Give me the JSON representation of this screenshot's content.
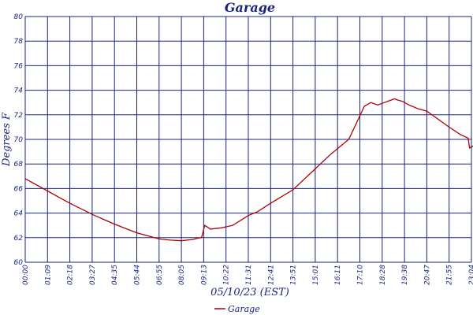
{
  "chart_data": {
    "type": "line",
    "title": "Garage",
    "xlabel": "05/10/23 (EST)",
    "ylabel": "Degrees F",
    "ylim": [
      60,
      80
    ],
    "y_ticks": [
      "60",
      "62",
      "64",
      "66",
      "68",
      "70",
      "72",
      "74",
      "76",
      "78",
      "80"
    ],
    "x_ticks": [
      "00:00",
      "01:09",
      "02:18",
      "03:27",
      "04:35",
      "05:44",
      "06:55",
      "08:05",
      "09:13",
      "10:22",
      "11:31",
      "12:41",
      "13:51",
      "15:01",
      "16:11",
      "17:10",
      "18:28",
      "19:38",
      "20:47",
      "21:55",
      "23:04"
    ],
    "grid": true,
    "legend_position": "bottom-center",
    "colors": {
      "series": "#b00000",
      "grid": "#1a237e",
      "text": "#1a237e"
    },
    "series": [
      {
        "name": "Garage",
        "x_tick_index": [
          0,
          1,
          2,
          3,
          4,
          5,
          6,
          6.5,
          7,
          7.5,
          7.85,
          7.9,
          8.05,
          8.3,
          8.8,
          9.3,
          10.0,
          10.4,
          11.0,
          12.0,
          13.0,
          13.7,
          14.5,
          15.2,
          15.5,
          15.8,
          16.1,
          16.55,
          16.7,
          16.9,
          17.2,
          17.6,
          18.0,
          19.0,
          19.5,
          19.85,
          19.92,
          20.2,
          20.7,
          21.0
        ],
        "values": [
          66.8,
          65.8,
          64.8,
          63.9,
          63.1,
          62.4,
          61.9,
          61.8,
          61.75,
          61.85,
          62.0,
          62.0,
          63.0,
          62.7,
          62.8,
          63.0,
          63.8,
          64.1,
          64.8,
          65.9,
          67.6,
          68.8,
          70.0,
          72.7,
          73.0,
          72.8,
          73.0,
          73.3,
          73.2,
          73.1,
          72.8,
          72.5,
          72.3,
          71.0,
          70.4,
          70.1,
          69.3,
          69.6,
          69.5,
          69.3
        ]
      }
    ]
  }
}
